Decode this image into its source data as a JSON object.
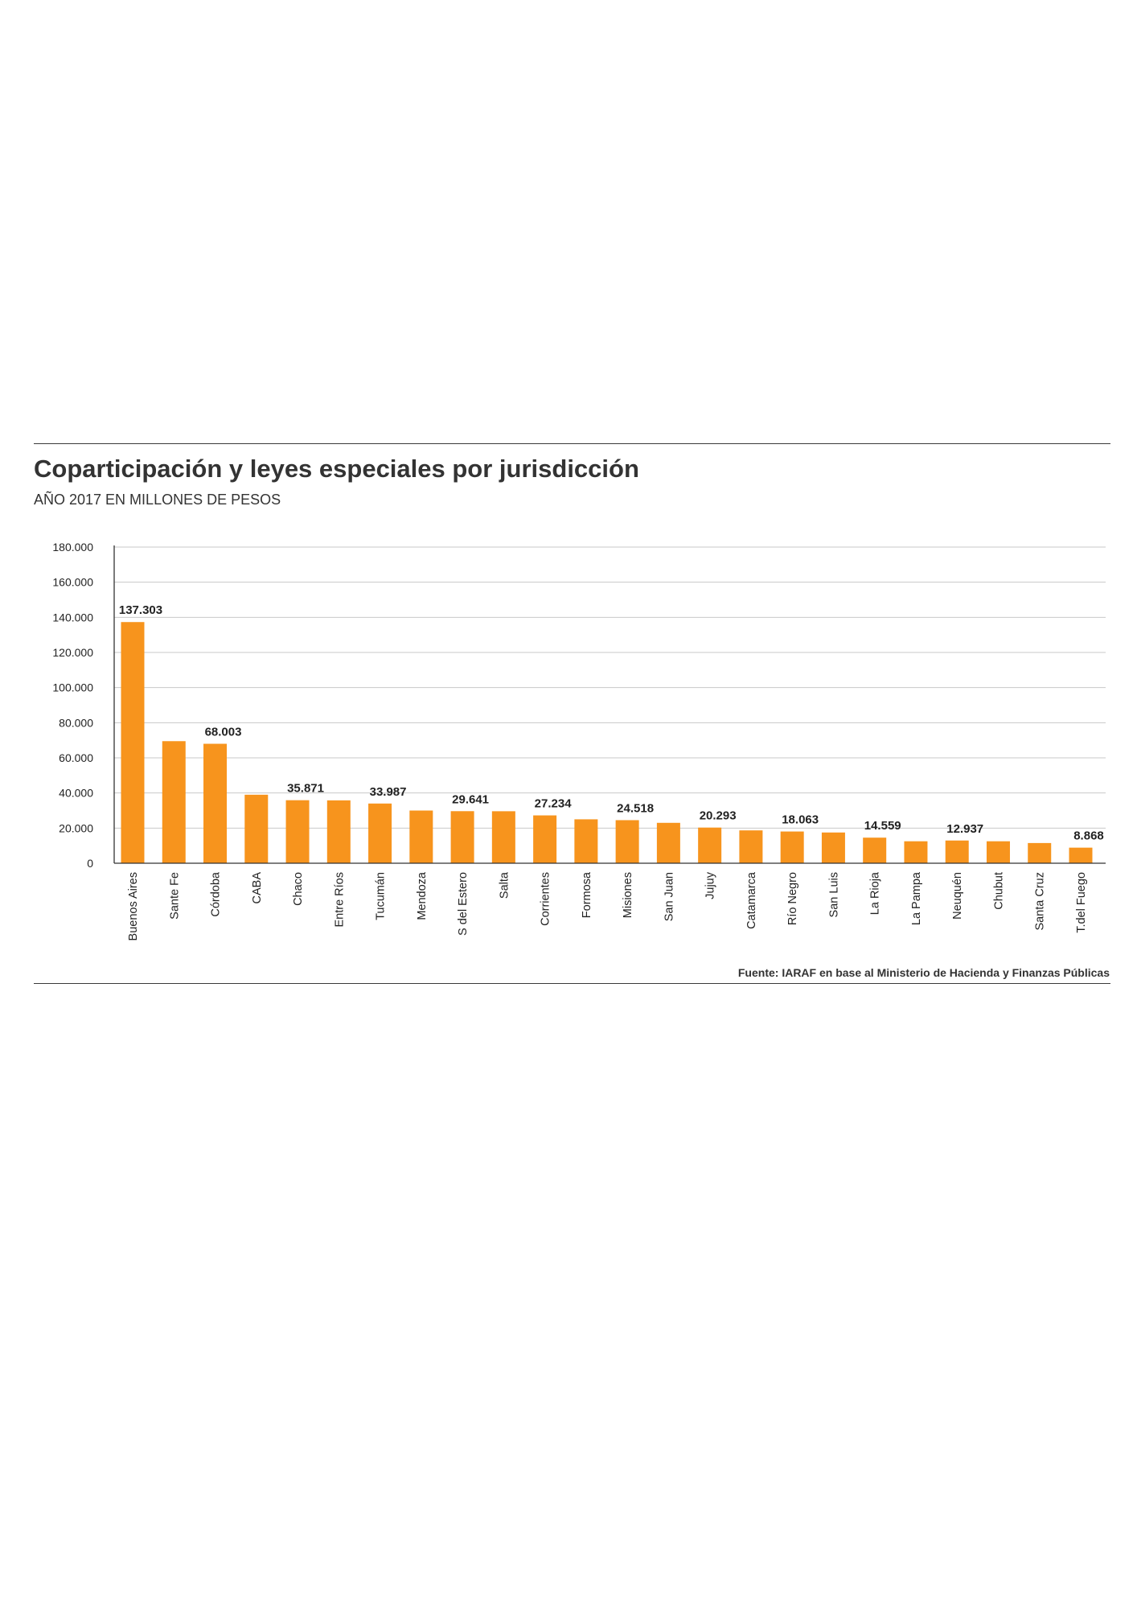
{
  "title": "Coparticipación y leyes especiales por jurisdicción",
  "subtitle": "AÑO 2017 EN MILLONES DE PESOS",
  "source": "Fuente: IARAF en base al Ministerio de Hacienda y Finanzas Públicas",
  "colors": {
    "bar": "#F7941D",
    "grid": "#c8c8c8",
    "axis": "#333333",
    "rule": "#3a3a3a"
  },
  "chart_data": {
    "type": "bar",
    "title": "Coparticipación y leyes especiales por jurisdicción",
    "subtitle": "AÑO 2017 EN MILLONES DE PESOS",
    "xlabel": "",
    "ylabel": "",
    "ylim": [
      0,
      180000
    ],
    "yticks": [
      0,
      20000,
      40000,
      60000,
      80000,
      100000,
      120000,
      140000,
      160000,
      180000
    ],
    "ytick_labels": [
      "0",
      "20.000",
      "40.000",
      "60.000",
      "80.000",
      "100.000",
      "120.000",
      "140.000",
      "160.000",
      "180.000"
    ],
    "grid": true,
    "legend": "none",
    "categories": [
      "Buenos Aires",
      "Sante Fe",
      "Córdoba",
      "CABA",
      "Chaco",
      "Entre Ríos",
      "Tucumán",
      "Mendoza",
      "S del Estero",
      "Salta",
      "Corrientes",
      "Formosa",
      "Misiones",
      "San Juan",
      "Jujuy",
      "Catamarca",
      "Río Negro",
      "San Luis",
      "La Rioja",
      "La Pampa",
      "Neuquén",
      "Chubut",
      "Santa Cruz",
      "T.del Fuego"
    ],
    "values": [
      137303,
      69500,
      68003,
      39000,
      35871,
      35800,
      33987,
      30000,
      29641,
      29600,
      27234,
      25000,
      24518,
      23000,
      20293,
      18700,
      18063,
      17500,
      14559,
      12500,
      12937,
      12500,
      11500,
      8868
    ],
    "data_labels": [
      "137.303",
      "",
      "68.003",
      "",
      "35.871",
      "",
      "33.987",
      "",
      "29.641",
      "",
      "27.234",
      "",
      "24.518",
      "",
      "20.293",
      "",
      "18.063",
      "",
      "14.559",
      "",
      "12.937",
      "",
      "",
      "8.868"
    ]
  }
}
